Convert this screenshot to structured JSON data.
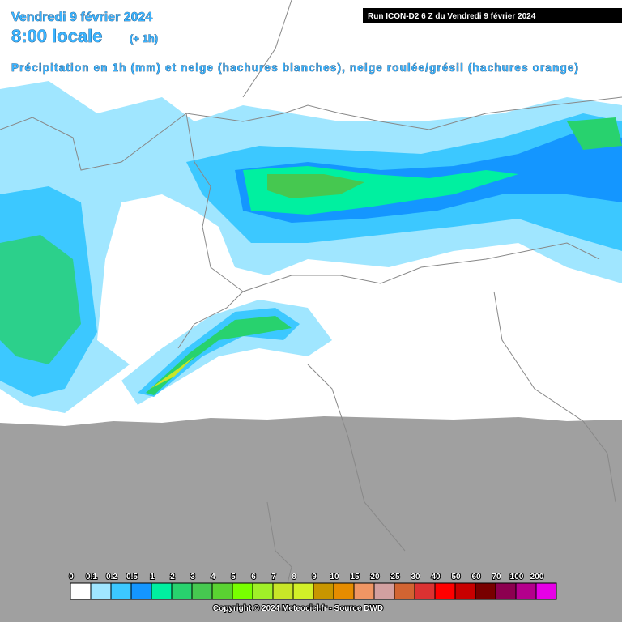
{
  "header": {
    "date": "Vendredi 9 février 2024",
    "time": "8:00 locale",
    "offset": "(+ 1h)",
    "subtitle": "Précipitation en 1h (mm) et neige (hachures blanches), neige roulée/grésil (hachures orange)",
    "run": "Run ICON-D2 6 Z du Vendredi 9 février 2024"
  },
  "legend": {
    "items": [
      {
        "label": "0",
        "color": "#ffffff"
      },
      {
        "label": "0.1",
        "color": "#a0e6ff"
      },
      {
        "label": "0.2",
        "color": "#3cc8ff"
      },
      {
        "label": "0.5",
        "color": "#1496ff"
      },
      {
        "label": "1",
        "color": "#00f0a0"
      },
      {
        "label": "2",
        "color": "#28d26e"
      },
      {
        "label": "3",
        "color": "#46c850"
      },
      {
        "label": "4",
        "color": "#5ad232"
      },
      {
        "label": "5",
        "color": "#78ff00"
      },
      {
        "label": "6",
        "color": "#a0f028"
      },
      {
        "label": "7",
        "color": "#c8e628"
      },
      {
        "label": "8",
        "color": "#d2f028"
      },
      {
        "label": "9",
        "color": "#c89600"
      },
      {
        "label": "10",
        "color": "#e68c00"
      },
      {
        "label": "15",
        "color": "#f09664"
      },
      {
        "label": "20",
        "color": "#d2a0a0"
      },
      {
        "label": "25",
        "color": "#d26432"
      },
      {
        "label": "30",
        "color": "#dc3232"
      },
      {
        "label": "40",
        "color": "#ff0000"
      },
      {
        "label": "50",
        "color": "#c80000"
      },
      {
        "label": "60",
        "color": "#780000"
      },
      {
        "label": "70",
        "color": "#8c0050"
      },
      {
        "label": "100",
        "color": "#b4008c"
      },
      {
        "label": "200",
        "color": "#e600e6"
      }
    ]
  },
  "footer": {
    "copyright": "Copyright © 2024 Meteociel.fr - Source DWD"
  }
}
